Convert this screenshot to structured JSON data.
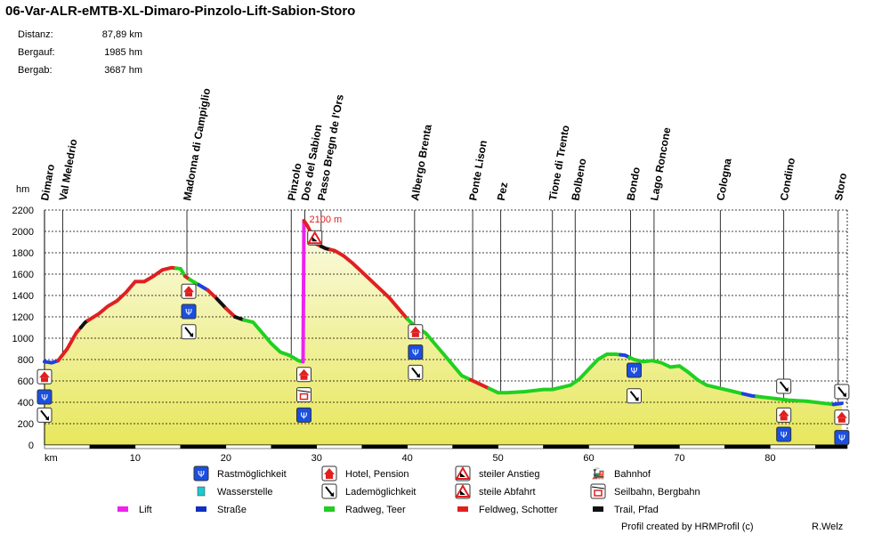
{
  "header": {
    "title": "06-Var-ALR-eMTB-XL-Dimaro-Pinzolo-Lift-Sabion-Storo",
    "stats": [
      {
        "label": "Distanz:",
        "value": "87,89 km"
      },
      {
        "label": "Bergauf:",
        "value": "1985 hm"
      },
      {
        "label": "Bergab:",
        "value": "3687 hm"
      }
    ]
  },
  "chart_data": {
    "type": "area",
    "xlabel": "km",
    "ylabel": "hm",
    "xlim": [
      0,
      88.5
    ],
    "ylim": [
      0,
      2200
    ],
    "x_ticks": [
      10,
      20,
      30,
      40,
      50,
      60,
      70,
      80
    ],
    "y_ticks": [
      0,
      200,
      400,
      600,
      800,
      1000,
      1200,
      1400,
      1600,
      1800,
      2000,
      2200
    ],
    "grid": true,
    "fill_color": "#e7e75d",
    "profile": [
      [
        0,
        780
      ],
      [
        0.8,
        770
      ],
      [
        1.5,
        790
      ],
      [
        2.5,
        900
      ],
      [
        3.5,
        1050
      ],
      [
        4.5,
        1150
      ],
      [
        6,
        1230
      ],
      [
        7,
        1300
      ],
      [
        8,
        1350
      ],
      [
        9,
        1430
      ],
      [
        10,
        1530
      ],
      [
        11,
        1530
      ],
      [
        12,
        1580
      ],
      [
        13,
        1640
      ],
      [
        14,
        1660
      ],
      [
        15,
        1650
      ],
      [
        15.5,
        1580
      ],
      [
        16,
        1550
      ],
      [
        17,
        1500
      ],
      [
        18,
        1450
      ],
      [
        19,
        1370
      ],
      [
        20,
        1280
      ],
      [
        21,
        1200
      ],
      [
        22,
        1170
      ],
      [
        23,
        1150
      ],
      [
        24,
        1050
      ],
      [
        25,
        950
      ],
      [
        26,
        870
      ],
      [
        27,
        840
      ],
      [
        28,
        790
      ],
      [
        28.5,
        780
      ],
      [
        28.6,
        2100
      ],
      [
        29,
        2050
      ],
      [
        30,
        1880
      ],
      [
        31,
        1840
      ],
      [
        32,
        1820
      ],
      [
        33,
        1770
      ],
      [
        34,
        1700
      ],
      [
        35,
        1620
      ],
      [
        36,
        1540
      ],
      [
        37,
        1460
      ],
      [
        38,
        1380
      ],
      [
        39,
        1280
      ],
      [
        40,
        1180
      ],
      [
        41,
        1100
      ],
      [
        42,
        1050
      ],
      [
        43,
        950
      ],
      [
        44,
        850
      ],
      [
        45,
        750
      ],
      [
        46,
        650
      ],
      [
        47,
        610
      ],
      [
        48,
        570
      ],
      [
        49,
        530
      ],
      [
        50,
        490
      ],
      [
        51,
        490
      ],
      [
        52,
        495
      ],
      [
        53,
        500
      ],
      [
        54,
        510
      ],
      [
        55,
        520
      ],
      [
        56,
        520
      ],
      [
        57,
        540
      ],
      [
        58,
        560
      ],
      [
        59,
        620
      ],
      [
        60,
        710
      ],
      [
        61,
        800
      ],
      [
        62,
        850
      ],
      [
        63,
        850
      ],
      [
        64,
        840
      ],
      [
        65,
        800
      ],
      [
        66,
        780
      ],
      [
        67,
        790
      ],
      [
        68,
        770
      ],
      [
        69,
        730
      ],
      [
        70,
        740
      ],
      [
        71,
        680
      ],
      [
        72,
        610
      ],
      [
        73,
        560
      ],
      [
        74,
        540
      ],
      [
        75,
        520
      ],
      [
        76,
        500
      ],
      [
        77,
        480
      ],
      [
        78,
        460
      ],
      [
        79,
        450
      ],
      [
        80,
        440
      ],
      [
        81,
        430
      ],
      [
        82,
        420
      ],
      [
        83,
        415
      ],
      [
        84,
        410
      ],
      [
        85,
        400
      ],
      [
        86,
        390
      ],
      [
        87,
        380
      ],
      [
        87.89,
        390
      ]
    ],
    "segments": [
      {
        "color": "#2040e0",
        "from": 0,
        "to": 1.5
      },
      {
        "color": "#e02020",
        "from": 1.5,
        "to": 4
      },
      {
        "color": "#111111",
        "from": 4,
        "to": 4.8
      },
      {
        "color": "#e02020",
        "from": 4.8,
        "to": 12.5
      },
      {
        "color": "#e02020",
        "from": 12.5,
        "to": 14.5
      },
      {
        "color": "#20d020",
        "from": 14.5,
        "to": 15.5
      },
      {
        "color": "#e02020",
        "from": 15.5,
        "to": 16
      },
      {
        "color": "#20d020",
        "from": 16,
        "to": 17
      },
      {
        "color": "#2040e0",
        "from": 17,
        "to": 18
      },
      {
        "color": "#e02020",
        "from": 18,
        "to": 19
      },
      {
        "color": "#111111",
        "from": 19,
        "to": 20
      },
      {
        "color": "#e02020",
        "from": 20,
        "to": 21
      },
      {
        "color": "#111111",
        "from": 21,
        "to": 22
      },
      {
        "color": "#20d020",
        "from": 22,
        "to": 28.5
      },
      {
        "color": "#ee22ee",
        "from": 28.5,
        "to": 28.6
      },
      {
        "color": "#e02020",
        "from": 28.6,
        "to": 30.5
      },
      {
        "color": "#111111",
        "from": 30.5,
        "to": 31.5
      },
      {
        "color": "#e02020",
        "from": 31.5,
        "to": 40
      },
      {
        "color": "#20d020",
        "from": 40,
        "to": 47
      },
      {
        "color": "#e02020",
        "from": 47,
        "to": 49
      },
      {
        "color": "#20d020",
        "from": 49,
        "to": 63.5
      },
      {
        "color": "#2040e0",
        "from": 63.5,
        "to": 64.5
      },
      {
        "color": "#20d020",
        "from": 64.5,
        "to": 72
      },
      {
        "color": "#20d020",
        "from": 72,
        "to": 77
      },
      {
        "color": "#2040e0",
        "from": 77,
        "to": 78.5
      },
      {
        "color": "#20d020",
        "from": 78.5,
        "to": 87
      },
      {
        "color": "#2040e0",
        "from": 87,
        "to": 87.89
      }
    ],
    "waypoints": [
      {
        "name": "Dimaro",
        "km": 0
      },
      {
        "name": "Val Meledrio",
        "km": 2
      },
      {
        "name": "Madonna di Campiglio",
        "km": 15.7
      },
      {
        "name": "Pinzolo",
        "km": 27.2
      },
      {
        "name": "Dos del Sabion",
        "km": 28.7
      },
      {
        "name": "Passo Bregn de l'Ors",
        "km": 30.5
      },
      {
        "name": "Albergo Brenta",
        "km": 40.8
      },
      {
        "name": "Ponte Lison",
        "km": 47.2
      },
      {
        "name": "Pez",
        "km": 50.3
      },
      {
        "name": "Tione di Trento",
        "km": 56
      },
      {
        "name": "Bolbeno",
        "km": 58.5
      },
      {
        "name": "Bondo",
        "km": 64.6
      },
      {
        "name": "Lago Roncone",
        "km": 67.2
      },
      {
        "name": "Cologna",
        "km": 74.5
      },
      {
        "name": "Condino",
        "km": 81.5
      },
      {
        "name": "Storo",
        "km": 87.5
      }
    ],
    "annotations": [
      {
        "text": "2100 m",
        "km": 28.6,
        "elev": 2100
      }
    ],
    "markers": [
      {
        "km": 0,
        "elev": 640,
        "icon": "hotel"
      },
      {
        "km": 0,
        "elev": 450,
        "icon": "rest"
      },
      {
        "km": 0,
        "elev": 280,
        "icon": "load"
      },
      {
        "km": 15.9,
        "elev": 1440,
        "icon": "hotel"
      },
      {
        "km": 15.9,
        "elev": 1250,
        "icon": "rest"
      },
      {
        "km": 15.9,
        "elev": 1060,
        "icon": "load"
      },
      {
        "km": 28.6,
        "elev": 660,
        "icon": "hotel"
      },
      {
        "km": 28.6,
        "elev": 470,
        "icon": "cable"
      },
      {
        "km": 28.6,
        "elev": 280,
        "icon": "rest"
      },
      {
        "km": 29.8,
        "elev": 1940,
        "icon": "steep-down"
      },
      {
        "km": 40.9,
        "elev": 1060,
        "icon": "hotel"
      },
      {
        "km": 40.9,
        "elev": 870,
        "icon": "rest"
      },
      {
        "km": 40.9,
        "elev": 680,
        "icon": "load"
      },
      {
        "km": 65,
        "elev": 700,
        "icon": "rest"
      },
      {
        "km": 65,
        "elev": 460,
        "icon": "load"
      },
      {
        "km": 81.5,
        "elev": 550,
        "icon": "load"
      },
      {
        "km": 81.5,
        "elev": 280,
        "icon": "hotel"
      },
      {
        "km": 81.5,
        "elev": 100,
        "icon": "rest"
      },
      {
        "km": 87.9,
        "elev": 500,
        "icon": "load"
      },
      {
        "km": 87.9,
        "elev": 260,
        "icon": "hotel"
      },
      {
        "km": 87.9,
        "elev": 70,
        "icon": "rest"
      }
    ]
  },
  "legend": [
    {
      "icon": "rest",
      "label": "Rastmöglichkeit",
      "col": 0,
      "row": 0
    },
    {
      "icon": "water",
      "label": "Wasserstelle",
      "col": 0,
      "row": 1
    },
    {
      "icon": "road",
      "label": "Straße",
      "col": 0,
      "row": 2
    },
    {
      "icon": "hotel",
      "label": "Hotel, Pension",
      "col": 1,
      "row": 0
    },
    {
      "icon": "load",
      "label": "Lademöglichkeit",
      "col": 1,
      "row": 1
    },
    {
      "icon": "bike",
      "label": "Radweg, Teer",
      "col": 1,
      "row": 2
    },
    {
      "icon": "steep-up",
      "label": "steiler Anstieg",
      "col": 2,
      "row": 0
    },
    {
      "icon": "steep-down",
      "label": "steile Abfahrt",
      "col": 2,
      "row": 1
    },
    {
      "icon": "gravel",
      "label": "Feldweg, Schotter",
      "col": 2,
      "row": 2
    },
    {
      "icon": "train",
      "label": "Bahnhof",
      "col": 3,
      "row": 0
    },
    {
      "icon": "cable",
      "label": "Seilbahn, Bergbahn",
      "col": 3,
      "row": 1
    },
    {
      "icon": "trail",
      "label": "Trail, Pfad",
      "col": 3,
      "row": 2
    },
    {
      "icon": "lift",
      "label": "Lift",
      "col": -1,
      "row": 2
    }
  ],
  "colors": {
    "rest": "#1a4fe0",
    "water": "#20c8d0",
    "road": "#1030c0",
    "hotel": "#e02020",
    "bike": "#22cc22",
    "gravel": "#e02020",
    "trail": "#111111",
    "lift": "#ee22ee"
  },
  "footer": {
    "credit": "Profil created by HRMProfil (c)",
    "author": "R.Welz"
  }
}
